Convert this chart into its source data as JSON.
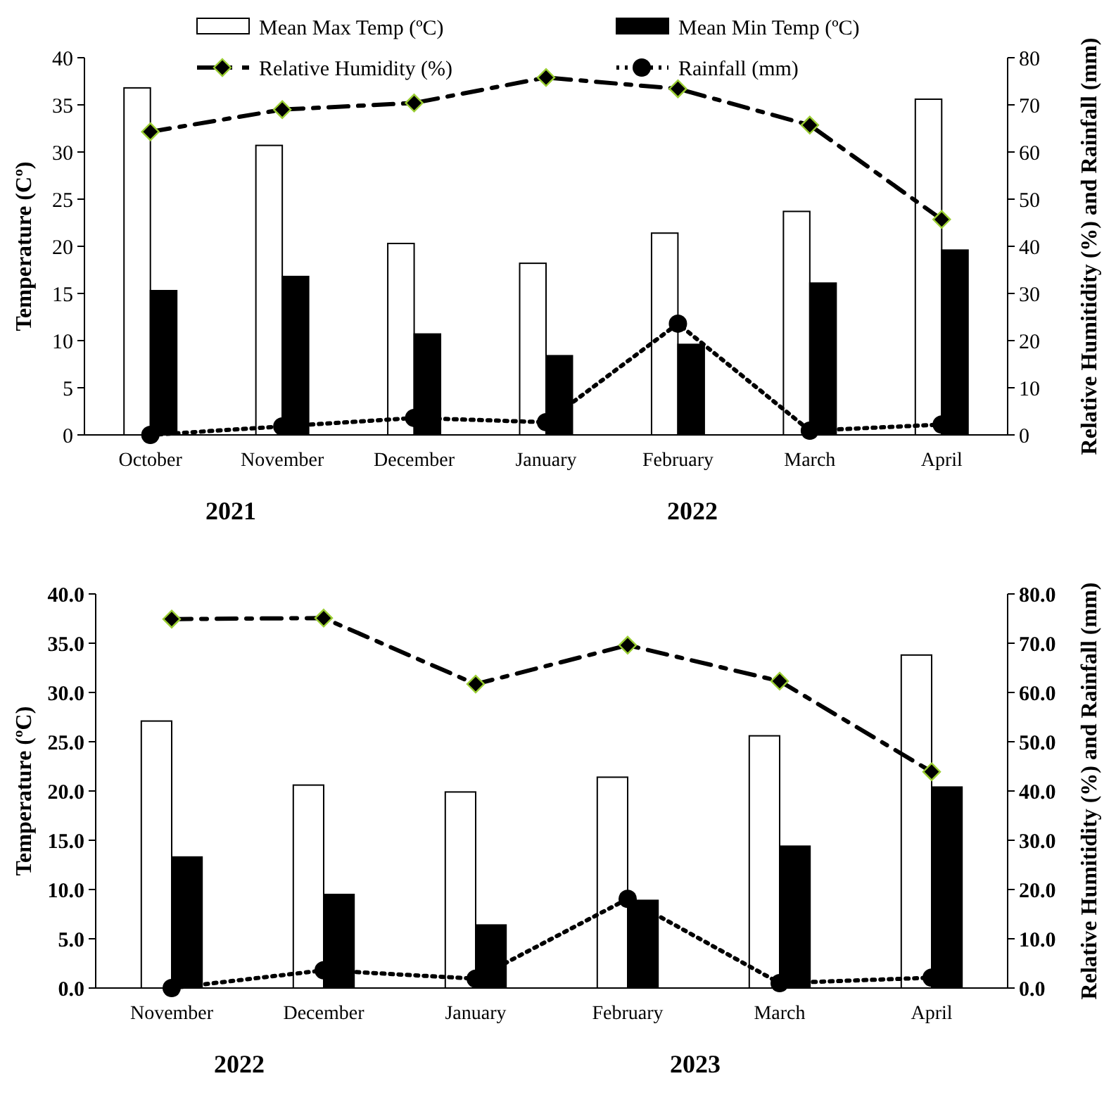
{
  "chart_data": [
    {
      "type": "bar",
      "categories": [
        "October",
        "November",
        "December",
        "January",
        "February",
        "March",
        "April"
      ],
      "ylabel": "Temperature (Cº)",
      "y2label": "Relative Humitidity (%) and Rainfall (mm)",
      "ylim": [
        0,
        40
      ],
      "yticks": [
        0,
        5,
        10,
        15,
        20,
        25,
        30,
        35,
        40
      ],
      "y2lim": [
        0,
        80
      ],
      "y2ticks": [
        0,
        10,
        20,
        30,
        40,
        50,
        60,
        70,
        80
      ],
      "legend": "top",
      "grid": false,
      "annotations": [
        "2021",
        "2022"
      ],
      "series": [
        {
          "name": "Mean Max Temp (ºC)",
          "color": "#ffffff",
          "values": [
            36.8,
            30.7,
            20.3,
            18.2,
            21.4,
            23.7,
            35.6
          ]
        },
        {
          "name": "Mean Min Temp (ºC)",
          "color": "#000000",
          "values": [
            15.3,
            16.8,
            10.7,
            8.4,
            9.6,
            16.1,
            19.6
          ]
        },
        {
          "name": "Relative Humidity (%)",
          "type": "line",
          "axis": "y2",
          "color": "#000000",
          "marker": "diamond",
          "line_style": "dashed",
          "values": [
            64.3,
            69,
            70.4,
            75.8,
            73.4,
            65.7,
            45.7
          ]
        },
        {
          "name": "Rainfall (mm)",
          "type": "line",
          "axis": "y2",
          "color": "#000000",
          "marker": "circle",
          "line_style": "dotted",
          "values": [
            0,
            1.8,
            3.6,
            2.7,
            23.6,
            0.9,
            2.2
          ]
        }
      ]
    },
    {
      "type": "bar",
      "categories": [
        "November",
        "December",
        "January",
        "February",
        "March",
        "April"
      ],
      "ylabel": "Temperature (ºC)",
      "y2label": "Relative Humitidity (%) and Rainfall (mm)",
      "ylim": [
        0,
        40
      ],
      "yticks": [
        {
          "value": 0,
          "label": "0.0"
        },
        {
          "value": 5,
          "label": "5.0"
        },
        {
          "value": 10,
          "label": "10.0"
        },
        {
          "value": 15,
          "label": "15.0"
        },
        {
          "value": 20,
          "label": "20.0"
        },
        {
          "value": 25,
          "label": "25.0"
        },
        {
          "value": 30,
          "label": "30.0"
        },
        {
          "value": 35,
          "label": "35.0"
        },
        {
          "value": 40,
          "label": "40.0"
        }
      ],
      "y2lim": [
        0,
        80
      ],
      "y2ticks": [
        {
          "value": 0,
          "label": "0.0"
        },
        {
          "value": 10,
          "label": "10.0"
        },
        {
          "value": 20,
          "label": "20.0"
        },
        {
          "value": 30,
          "label": "30.0"
        },
        {
          "value": 40,
          "label": "40.0"
        },
        {
          "value": 50,
          "label": "50.0"
        },
        {
          "value": 60,
          "label": "60.0"
        },
        {
          "value": 70,
          "label": "70.0"
        },
        {
          "value": 80,
          "label": "80.0"
        }
      ],
      "grid": false,
      "annotations": [
        "2022",
        "2023"
      ],
      "series": [
        {
          "color": "#ffffff",
          "values": [
            27.1,
            20.6,
            19.9,
            21.4,
            25.6,
            33.8
          ]
        },
        {
          "color": "#000000",
          "values": [
            13.3,
            9.5,
            6.4,
            8.9,
            14.4,
            20.4
          ]
        },
        {
          "type": "line",
          "axis": "y2",
          "color": "#000000",
          "marker": "diamond",
          "line_style": "dashed",
          "values": [
            74.9,
            75.1,
            61.7,
            69.6,
            62.3,
            43.9
          ]
        },
        {
          "type": "line",
          "axis": "y2",
          "color": "#000000",
          "marker": "circle",
          "line_style": "dotted",
          "values": [
            0,
            3.6,
            1.9,
            18.1,
            1.0,
            2.1
          ]
        }
      ]
    }
  ]
}
